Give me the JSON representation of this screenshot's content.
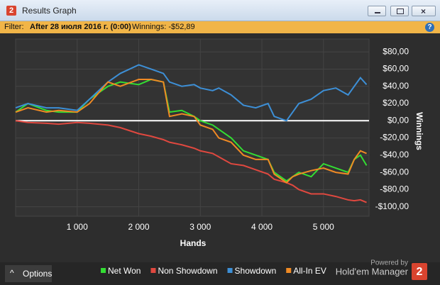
{
  "window": {
    "app_icon": "2",
    "title": "Results Graph",
    "filter_label": "Filter:",
    "filter_value": "After 28 июля 2016 г. (0:00)",
    "winnings": "Winnings: -$52,89",
    "options": "Options",
    "powered_by": "Powered by",
    "brand": "Hold'em Manager",
    "brand_logo": "2"
  },
  "chart_data": {
    "type": "line",
    "x_label": "Hands",
    "y_label": "Winnings",
    "x": [
      0,
      200,
      500,
      700,
      1000,
      1200,
      1500,
      1700,
      2000,
      2200,
      2400,
      2500,
      2700,
      2900,
      3000,
      3200,
      3300,
      3500,
      3700,
      3900,
      4100,
      4200,
      4400,
      4500,
      4600,
      4800,
      5000,
      5200,
      5400,
      5500,
      5600,
      5700
    ],
    "series": [
      {
        "name": "Net Won",
        "color": "#33dd33",
        "values": [
          10,
          20,
          12,
          10,
          10,
          25,
          40,
          45,
          42,
          48,
          45,
          10,
          12,
          5,
          0,
          -5,
          -10,
          -20,
          -35,
          -40,
          -45,
          -60,
          -70,
          -65,
          -60,
          -65,
          -50,
          -55,
          -60,
          -45,
          -40,
          -52
        ]
      },
      {
        "name": "Non Showdown",
        "color": "#e0483f",
        "values": [
          0,
          -2,
          -3,
          -4,
          -2,
          -3,
          -5,
          -8,
          -15,
          -18,
          -22,
          -25,
          -28,
          -32,
          -35,
          -38,
          -42,
          -50,
          -52,
          -57,
          -62,
          -68,
          -72,
          -75,
          -80,
          -85,
          -85,
          -88,
          -92,
          -93,
          -92,
          -95
        ]
      },
      {
        "name": "Showdown",
        "color": "#3d8fd6",
        "values": [
          15,
          20,
          15,
          15,
          12,
          25,
          45,
          55,
          65,
          60,
          55,
          45,
          40,
          42,
          38,
          35,
          38,
          30,
          18,
          15,
          20,
          5,
          0,
          10,
          20,
          25,
          35,
          38,
          30,
          40,
          50,
          42
        ]
      },
      {
        "name": "All-In EV",
        "color": "#f08a24",
        "values": [
          10,
          15,
          10,
          12,
          10,
          20,
          45,
          40,
          48,
          48,
          45,
          5,
          8,
          5,
          -5,
          -10,
          -20,
          -25,
          -40,
          -45,
          -45,
          -62,
          -72,
          -65,
          -62,
          -58,
          -55,
          -60,
          -62,
          -45,
          -35,
          -38
        ]
      }
    ],
    "xlim": [
      0,
      5740
    ],
    "ylim": [
      -111,
      95
    ],
    "xticks": [
      {
        "value": 1000,
        "label": "1 000"
      },
      {
        "value": 2000,
        "label": "2 000"
      },
      {
        "value": 3000,
        "label": "3 000"
      },
      {
        "value": 4000,
        "label": "4 000"
      },
      {
        "value": 5000,
        "label": "5 000"
      }
    ],
    "yticks": [
      {
        "value": 80,
        "label": "$80,00"
      },
      {
        "value": 60,
        "label": "$60,00"
      },
      {
        "value": 40,
        "label": "$40,00"
      },
      {
        "value": 20,
        "label": "$20,00"
      },
      {
        "value": 0,
        "label": "$0,00"
      },
      {
        "value": -20,
        "label": "-$20,00"
      },
      {
        "value": -40,
        "label": "-$40,00"
      },
      {
        "value": -60,
        "label": "-$60,00"
      },
      {
        "value": -80,
        "label": "-$80,00"
      },
      {
        "value": -100,
        "label": "-$100,00"
      }
    ],
    "grid": true,
    "zero_line": true,
    "legend": "bottom"
  }
}
